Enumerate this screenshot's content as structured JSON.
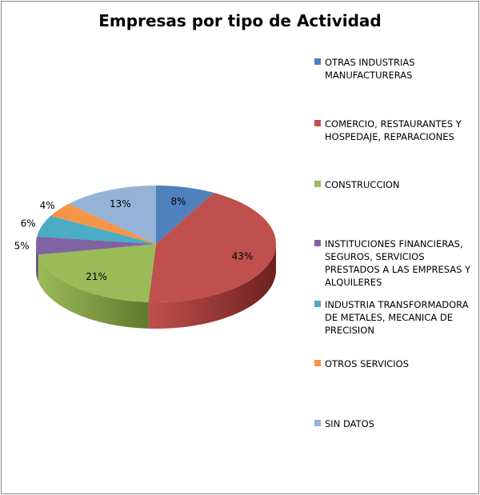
{
  "chart_data": {
    "type": "pie",
    "title": "Empresas por tipo de Actividad",
    "slices": [
      {
        "label": "OTRAS INDUSTRIAS MANUFACTURERAS",
        "value": 8,
        "display": "8%",
        "color": "#4f81bd",
        "side": "#2c4d75"
      },
      {
        "label": "COMERCIO, RESTAURANTES Y HOSPEDAJE, REPARACIONES",
        "value": 43,
        "display": "43%",
        "color": "#c0504d",
        "side": "#6e211f"
      },
      {
        "label": "CONSTRUCCION",
        "value": 21,
        "display": "21%",
        "color": "#9bbb59",
        "side": "#5f7a2d"
      },
      {
        "label": "INSTITUCIONES FINANCIERAS, SEGUROS, SERVICIOS PRESTADOS A LAS EMPRESAS Y ALQUILERES",
        "value": 5,
        "display": "5%",
        "color": "#8064a2",
        "side": "#4b3a62"
      },
      {
        "label": "INDUSTRIA TRANSFORMADORA DE METALES, MECANICA DE PRECISION",
        "value": 6,
        "display": "6%",
        "color": "#4bacc6",
        "side": "#276a7c"
      },
      {
        "label": "OTROS SERVICIOS",
        "value": 4,
        "display": "4%",
        "color": "#f79646",
        "side": "#a85a17"
      },
      {
        "label": "SIN DATOS",
        "value": 13,
        "display": "13%",
        "color": "#95b3d7",
        "side": "#5e7ca3"
      }
    ],
    "legend_position": "right"
  }
}
